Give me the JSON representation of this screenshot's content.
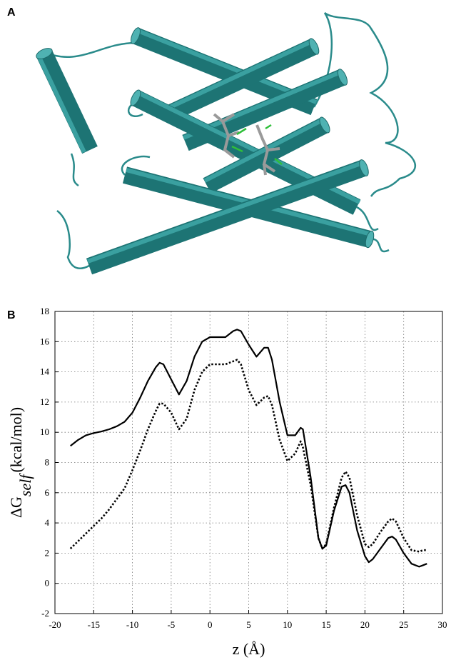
{
  "panel_labels": [
    "A",
    "B"
  ],
  "chart_data": {
    "type": "line",
    "ylabel": [
      "ΔG",
      "self",
      "(kcal/mol)"
    ],
    "xlabel": "z (Å)",
    "x": [
      -18,
      -17,
      -16,
      -15,
      -14,
      -13,
      -12,
      -11,
      -10,
      -9,
      -8,
      -7,
      -6.5,
      -6,
      -5,
      -4,
      -3,
      -2,
      -1,
      0,
      1,
      2,
      3,
      3.5,
      4,
      5,
      6,
      7,
      7.5,
      8,
      9,
      10,
      11,
      11.7,
      12,
      13,
      14,
      14.5,
      15,
      16,
      17,
      17.5,
      18,
      19,
      20,
      20.5,
      21,
      22,
      23,
      23.5,
      24,
      25,
      26,
      27,
      27.5,
      28
    ],
    "series": [
      {
        "color": "#000000",
        "dash": "solid",
        "values": [
          9.1,
          9.5,
          9.8,
          9.95,
          10.05,
          10.2,
          10.4,
          10.7,
          11.3,
          12.3,
          13.4,
          14.3,
          14.6,
          14.5,
          13.5,
          12.5,
          13.4,
          15.0,
          16.0,
          16.3,
          16.3,
          16.3,
          16.7,
          16.8,
          16.7,
          15.8,
          15.0,
          15.6,
          15.6,
          14.8,
          12.0,
          9.8,
          9.8,
          10.3,
          10.2,
          7.0,
          3.0,
          2.3,
          2.5,
          4.8,
          6.4,
          6.5,
          6.0,
          3.5,
          1.8,
          1.4,
          1.6,
          2.3,
          3.0,
          3.1,
          2.9,
          2.0,
          1.3,
          1.1,
          1.2,
          1.3
        ]
      },
      {
        "color": "#000000",
        "dash": "dotted",
        "values": [
          2.3,
          2.8,
          3.3,
          3.8,
          4.3,
          4.9,
          5.6,
          6.3,
          7.5,
          8.8,
          10.2,
          11.4,
          11.9,
          11.9,
          11.3,
          10.2,
          10.9,
          12.8,
          14.0,
          14.5,
          14.5,
          14.5,
          14.7,
          14.8,
          14.5,
          12.8,
          11.8,
          12.3,
          12.4,
          11.8,
          9.5,
          8.1,
          8.6,
          9.4,
          9.0,
          6.5,
          3.0,
          2.3,
          2.6,
          5.0,
          7.0,
          7.4,
          7.0,
          4.5,
          2.6,
          2.4,
          2.6,
          3.4,
          4.1,
          4.3,
          4.1,
          3.0,
          2.2,
          2.1,
          2.2,
          2.2
        ]
      }
    ],
    "xlim": [
      -20,
      30
    ],
    "xticks": [
      -20,
      -15,
      -10,
      -5,
      0,
      5,
      10,
      15,
      20,
      25,
      30
    ],
    "ylim": [
      -2,
      18
    ],
    "yticks": [
      -2,
      0,
      2,
      4,
      6,
      8,
      10,
      12,
      14,
      16,
      18
    ],
    "grid": true
  }
}
